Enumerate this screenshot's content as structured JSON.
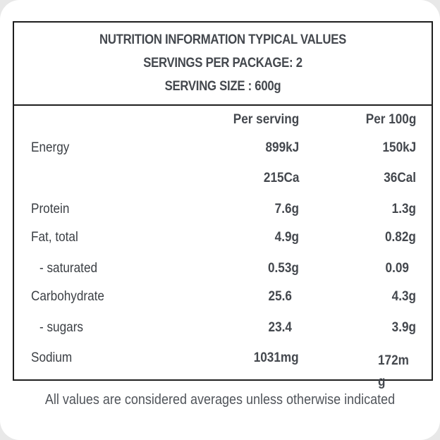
{
  "header": {
    "line1": "NUTRITION INFORMATION TYPICAL VALUES",
    "line2": "SERVINGS PER PACKAGE: 2",
    "line3": "SERVING SIZE : 600g"
  },
  "columns": {
    "per_serving": "Per serving",
    "per_100g": "Per 100g"
  },
  "rows": [
    {
      "label": "Energy",
      "per_serving": "899kJ",
      "per_100g": "150kJ"
    },
    {
      "label": "",
      "per_serving": "215Ca",
      "per_100g": "36Cal"
    },
    {
      "label": "Protein",
      "per_serving": "7.6g",
      "per_100g": "1.3g"
    },
    {
      "label": "Fat, total",
      "per_serving": "4.9g",
      "per_100g": "0.82g"
    },
    {
      "label": "- saturated",
      "per_serving": "0.53g",
      "per_100g": "0.09"
    },
    {
      "label": "Carbohydrate",
      "per_serving": "25.6",
      "per_100g": "4.3g"
    },
    {
      "label": "- sugars",
      "per_serving": "23.4",
      "per_100g": "3.9g"
    },
    {
      "label": "Sodium",
      "per_serving": "1031mg",
      "per_100g": "172mg"
    }
  ],
  "footer": "All values are considered averages unless otherwise indicated"
}
